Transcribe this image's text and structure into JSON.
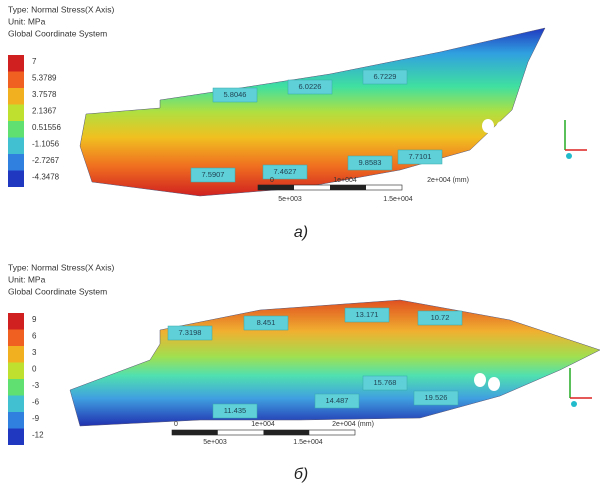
{
  "panel_a": {
    "header": [
      "Type: Normal Stress(X Axis)",
      "Unit: MPa",
      "Global Coordinate System"
    ],
    "legend": [
      "7",
      "5.3789",
      "3.7578",
      "2.1367",
      "0.51556",
      "-1.1056",
      "-2.7267",
      "-4.3478"
    ],
    "callouts": [
      "5.8046",
      "6.0226",
      "6.7229",
      "7.5907",
      "7.4627",
      "9.8583",
      "7.7101"
    ],
    "scale": [
      "0",
      "1e+004",
      "2e+004 (mm)",
      "5e+003",
      "1.5e+004"
    ],
    "caption": "а)"
  },
  "panel_b": {
    "header": [
      "Type: Normal Stress(X Axis)",
      "Unit: MPa",
      "Global Coordinate System"
    ],
    "legend": [
      "9",
      "6",
      "3",
      "0",
      "-3",
      "-6",
      "-9",
      "-12"
    ],
    "callouts": [
      "7.3198",
      "8.451",
      "13.171",
      "10.72",
      "11.435",
      "14.487",
      "15.768",
      "19.526"
    ],
    "scale": [
      "0",
      "1e+004",
      "2e+004 (mm)",
      "5e+003",
      "1.5e+004"
    ],
    "caption": "б)"
  }
}
